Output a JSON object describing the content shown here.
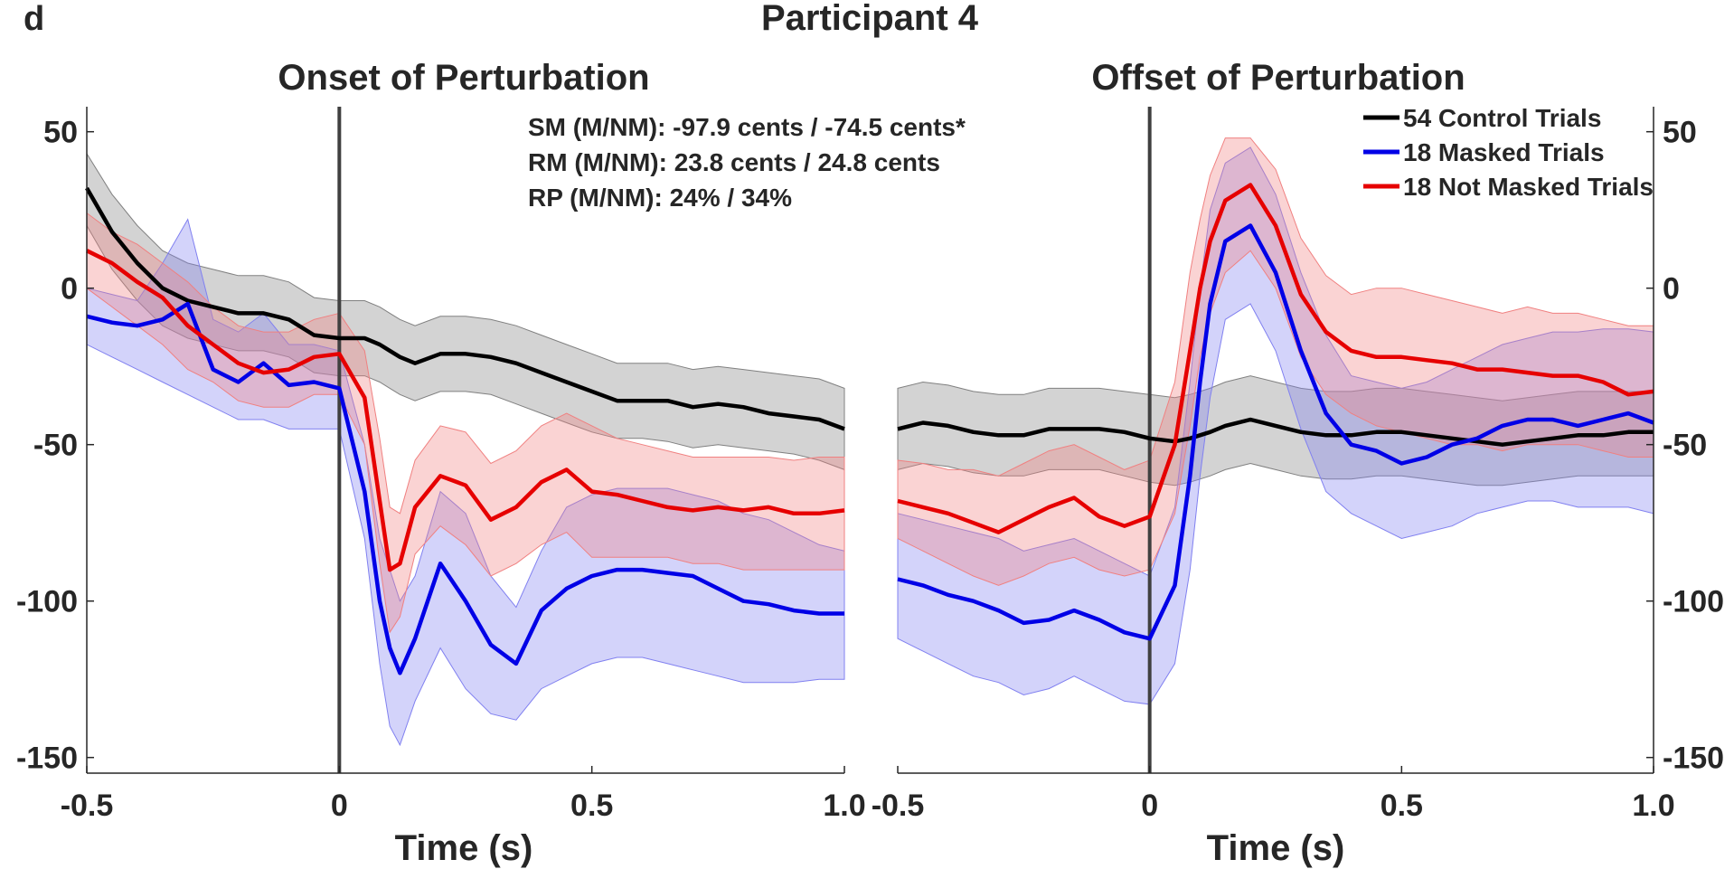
{
  "panel_letter": "d",
  "figure_title": "Participant 4",
  "colors": {
    "control": "#000000",
    "masked": "#0000e6",
    "not_masked": "#e60000",
    "control_band": "#808080",
    "masked_band": "#8080f0",
    "not_masked_band": "#f08080",
    "onset_line": "#404040"
  },
  "annotations": [
    "SM (M/NM): -97.9 cents / -74.5 cents*",
    "RM (M/NM): 23.8 cents / 24.8 cents",
    "RP (M/NM): 24% / 34%"
  ],
  "legend": {
    "placement": "top-right",
    "entries": [
      "54 Control Trials",
      "18 Masked Trials",
      "18 Not Masked Trials"
    ]
  },
  "chart_data": [
    {
      "type": "line",
      "title": "Onset of Perturbation",
      "xlabel": "Time (s)",
      "ylabel": "",
      "xlim": [
        -0.5,
        1.0
      ],
      "ylim": [
        -155,
        58
      ],
      "xticks": [
        "-0.5",
        "0",
        "0.5",
        "1.0"
      ],
      "yticks": [
        "50",
        "0",
        "-50",
        "-100",
        "-150"
      ],
      "y_axis_side": "left",
      "vertical_marker_x": 0,
      "grid": false,
      "x": [
        -0.5,
        -0.45,
        -0.4,
        -0.35,
        -0.3,
        -0.25,
        -0.2,
        -0.15,
        -0.1,
        -0.05,
        0,
        0.05,
        0.08,
        0.1,
        0.12,
        0.15,
        0.2,
        0.25,
        0.3,
        0.35,
        0.4,
        0.45,
        0.5,
        0.55,
        0.6,
        0.65,
        0.7,
        0.75,
        0.8,
        0.85,
        0.9,
        0.95,
        1.0
      ],
      "series": [
        {
          "name": "54 Control Trials",
          "values": [
            32,
            18,
            8,
            0,
            -4,
            -6,
            -8,
            -8,
            -10,
            -15,
            -16,
            -16,
            -18,
            -20,
            -22,
            -24,
            -21,
            -21,
            -22,
            -24,
            -27,
            -30,
            -33,
            -36,
            -36,
            -36,
            -38,
            -37,
            -38,
            -40,
            -41,
            -42,
            -45
          ],
          "lower": [
            20,
            6,
            -4,
            -12,
            -16,
            -18,
            -20,
            -20,
            -22,
            -27,
            -28,
            -28,
            -30,
            -32,
            -34,
            -36,
            -33,
            -33,
            -34,
            -37,
            -40,
            -43,
            -46,
            -48,
            -48,
            -49,
            -51,
            -50,
            -51,
            -52,
            -53,
            -55,
            -58
          ],
          "upper": [
            43,
            30,
            20,
            12,
            8,
            6,
            4,
            4,
            2,
            -3,
            -4,
            -4,
            -6,
            -8,
            -10,
            -12,
            -9,
            -9,
            -10,
            -12,
            -15,
            -18,
            -21,
            -24,
            -24,
            -24,
            -26,
            -25,
            -26,
            -27,
            -28,
            -29,
            -32
          ]
        },
        {
          "name": "18 Masked Trials",
          "values": [
            -9,
            -11,
            -12,
            -10,
            -5,
            -26,
            -30,
            -24,
            -31,
            -30,
            -32,
            -65,
            -100,
            -115,
            -123,
            -112,
            -88,
            -100,
            -114,
            -120,
            -103,
            -96,
            -92,
            -90,
            -90,
            -91,
            -92,
            -96,
            -100,
            -101,
            -103,
            -104,
            -104
          ],
          "lower": [
            -18,
            -22,
            -26,
            -30,
            -34,
            -38,
            -42,
            -42,
            -45,
            -45,
            -45,
            -80,
            -120,
            -140,
            -146,
            -132,
            -115,
            -128,
            -136,
            -138,
            -128,
            -124,
            -120,
            -118,
            -118,
            -120,
            -122,
            -124,
            -126,
            -126,
            -126,
            -125,
            -125
          ],
          "upper": [
            0,
            -2,
            -4,
            8,
            22,
            -10,
            -14,
            -8,
            -18,
            -18,
            -20,
            -50,
            -80,
            -90,
            -100,
            -92,
            -65,
            -72,
            -92,
            -102,
            -84,
            -70,
            -66,
            -64,
            -64,
            -64,
            -66,
            -68,
            -72,
            -74,
            -78,
            -82,
            -84
          ]
        },
        {
          "name": "18 Not Masked Trials",
          "values": [
            12,
            8,
            2,
            -3,
            -12,
            -18,
            -24,
            -27,
            -26,
            -22,
            -21,
            -35,
            -68,
            -90,
            -88,
            -70,
            -60,
            -63,
            -74,
            -70,
            -62,
            -58,
            -65,
            -66,
            -68,
            -70,
            -71,
            -70,
            -71,
            -70,
            -72,
            -72,
            -71
          ],
          "lower": [
            0,
            -6,
            -12,
            -18,
            -26,
            -30,
            -36,
            -38,
            -38,
            -34,
            -34,
            -50,
            -88,
            -110,
            -105,
            -85,
            -76,
            -82,
            -92,
            -88,
            -82,
            -78,
            -86,
            -86,
            -86,
            -86,
            -88,
            -88,
            -90,
            -90,
            -90,
            -90,
            -90
          ],
          "upper": [
            24,
            18,
            14,
            8,
            2,
            -6,
            -12,
            -14,
            -14,
            -10,
            -8,
            -20,
            -48,
            -70,
            -72,
            -55,
            -44,
            -46,
            -56,
            -52,
            -44,
            -40,
            -44,
            -48,
            -50,
            -52,
            -54,
            -54,
            -54,
            -54,
            -55,
            -54,
            -54
          ]
        }
      ]
    },
    {
      "type": "line",
      "title": "Offset of Perturbation",
      "xlabel": "Time (s)",
      "ylabel": "",
      "xlim": [
        -0.5,
        1.0
      ],
      "ylim": [
        -155,
        58
      ],
      "xticks": [
        "-0.5",
        "0",
        "0.5",
        "1.0"
      ],
      "yticks": [
        "50",
        "0",
        "-50",
        "-100",
        "-150"
      ],
      "y_axis_side": "right",
      "vertical_marker_x": 0,
      "grid": false,
      "x": [
        -0.5,
        -0.45,
        -0.4,
        -0.35,
        -0.3,
        -0.25,
        -0.2,
        -0.15,
        -0.1,
        -0.05,
        0,
        0.05,
        0.08,
        0.1,
        0.12,
        0.15,
        0.2,
        0.25,
        0.3,
        0.35,
        0.4,
        0.45,
        0.5,
        0.55,
        0.6,
        0.65,
        0.7,
        0.75,
        0.8,
        0.85,
        0.9,
        0.95,
        1.0
      ],
      "series": [
        {
          "name": "54 Control Trials",
          "values": [
            -45,
            -43,
            -44,
            -46,
            -47,
            -47,
            -45,
            -45,
            -45,
            -46,
            -48,
            -49,
            -48,
            -47,
            -46,
            -44,
            -42,
            -44,
            -46,
            -47,
            -47,
            -46,
            -46,
            -47,
            -48,
            -49,
            -50,
            -49,
            -48,
            -47,
            -47,
            -46,
            -46
          ],
          "lower": [
            -58,
            -56,
            -57,
            -59,
            -60,
            -60,
            -58,
            -58,
            -58,
            -60,
            -62,
            -63,
            -62,
            -61,
            -60,
            -58,
            -56,
            -58,
            -60,
            -61,
            -61,
            -60,
            -60,
            -61,
            -62,
            -63,
            -63,
            -62,
            -61,
            -60,
            -60,
            -60,
            -60
          ],
          "upper": [
            -32,
            -30,
            -31,
            -33,
            -34,
            -34,
            -32,
            -32,
            -32,
            -33,
            -34,
            -35,
            -34,
            -33,
            -32,
            -30,
            -28,
            -30,
            -32,
            -33,
            -33,
            -32,
            -32,
            -33,
            -34,
            -35,
            -36,
            -35,
            -34,
            -33,
            -33,
            -33,
            -33
          ]
        },
        {
          "name": "18 Masked Trials",
          "values": [
            -93,
            -95,
            -98,
            -100,
            -103,
            -107,
            -106,
            -103,
            -106,
            -110,
            -112,
            -95,
            -60,
            -30,
            -5,
            15,
            20,
            5,
            -20,
            -40,
            -50,
            -52,
            -56,
            -54,
            -50,
            -48,
            -44,
            -42,
            -42,
            -44,
            -42,
            -40,
            -43
          ],
          "lower": [
            -112,
            -116,
            -120,
            -124,
            -126,
            -130,
            -128,
            -124,
            -128,
            -132,
            -133,
            -120,
            -90,
            -60,
            -35,
            -10,
            -5,
            -20,
            -45,
            -65,
            -72,
            -76,
            -80,
            -78,
            -76,
            -72,
            -70,
            -68,
            -68,
            -70,
            -70,
            -70,
            -72
          ],
          "upper": [
            -72,
            -74,
            -76,
            -78,
            -80,
            -84,
            -82,
            -80,
            -84,
            -88,
            -92,
            -70,
            -30,
            0,
            25,
            40,
            45,
            30,
            5,
            -15,
            -28,
            -30,
            -32,
            -30,
            -26,
            -22,
            -18,
            -16,
            -14,
            -14,
            -13,
            -13,
            -14
          ]
        },
        {
          "name": "18 Not Masked Trials",
          "values": [
            -68,
            -70,
            -72,
            -75,
            -78,
            -74,
            -70,
            -67,
            -73,
            -76,
            -73,
            -50,
            -20,
            0,
            15,
            28,
            33,
            20,
            -2,
            -14,
            -20,
            -22,
            -22,
            -23,
            -24,
            -26,
            -26,
            -27,
            -28,
            -28,
            -30,
            -34,
            -33
          ],
          "lower": [
            -80,
            -84,
            -88,
            -92,
            -95,
            -92,
            -88,
            -86,
            -90,
            -92,
            -90,
            -72,
            -44,
            -22,
            -8,
            5,
            12,
            0,
            -22,
            -34,
            -40,
            -44,
            -46,
            -48,
            -50,
            -50,
            -52,
            -50,
            -50,
            -50,
            -52,
            -54,
            -54
          ],
          "upper": [
            -55,
            -56,
            -58,
            -58,
            -60,
            -56,
            -52,
            -50,
            -54,
            -58,
            -55,
            -30,
            5,
            22,
            36,
            48,
            48,
            38,
            16,
            4,
            -2,
            0,
            0,
            -2,
            -4,
            -6,
            -8,
            -6,
            -8,
            -8,
            -10,
            -12,
            -12
          ]
        }
      ]
    }
  ]
}
